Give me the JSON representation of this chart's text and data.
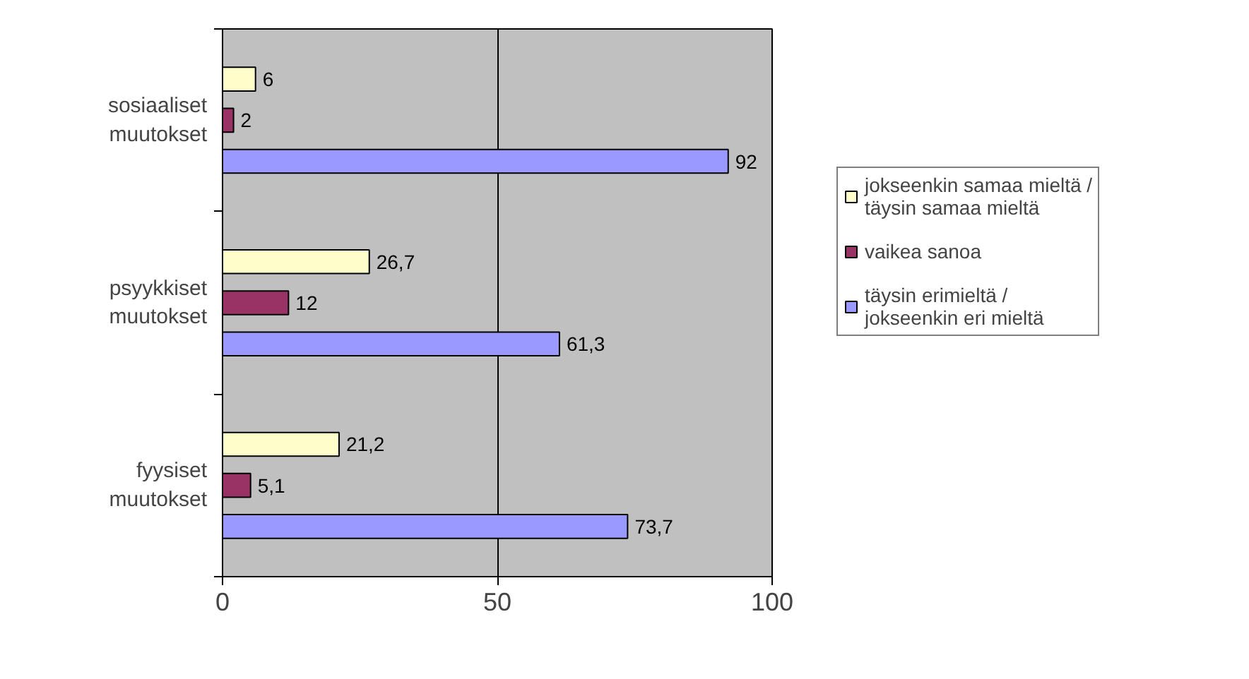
{
  "chart_data": {
    "type": "bar",
    "orientation": "horizontal",
    "categories": [
      "sosiaaliset muutokset",
      "psyykkiset muutokset",
      "fyysiset muutokset"
    ],
    "series": [
      {
        "name": "jokseenkin samaa mieltä / täysin samaa mieltä",
        "color": "#ffffcc",
        "values": [
          6,
          26.7,
          21.2
        ],
        "value_labels": [
          "6",
          "26,7",
          "21,2"
        ]
      },
      {
        "name": "vaikea sanoa",
        "color": "#993366",
        "values": [
          2,
          12,
          5.1
        ],
        "value_labels": [
          "2",
          "12",
          "5,1"
        ]
      },
      {
        "name": "täysin erimieltä / jokseenkin eri mieltä",
        "color": "#9999ff",
        "values": [
          92,
          61.3,
          73.7
        ],
        "value_labels": [
          "92",
          "61,3",
          "73,7"
        ]
      }
    ],
    "xlim": [
      0,
      100
    ],
    "xticks": [
      0,
      50,
      100
    ],
    "grid": "x",
    "legend": "right"
  }
}
